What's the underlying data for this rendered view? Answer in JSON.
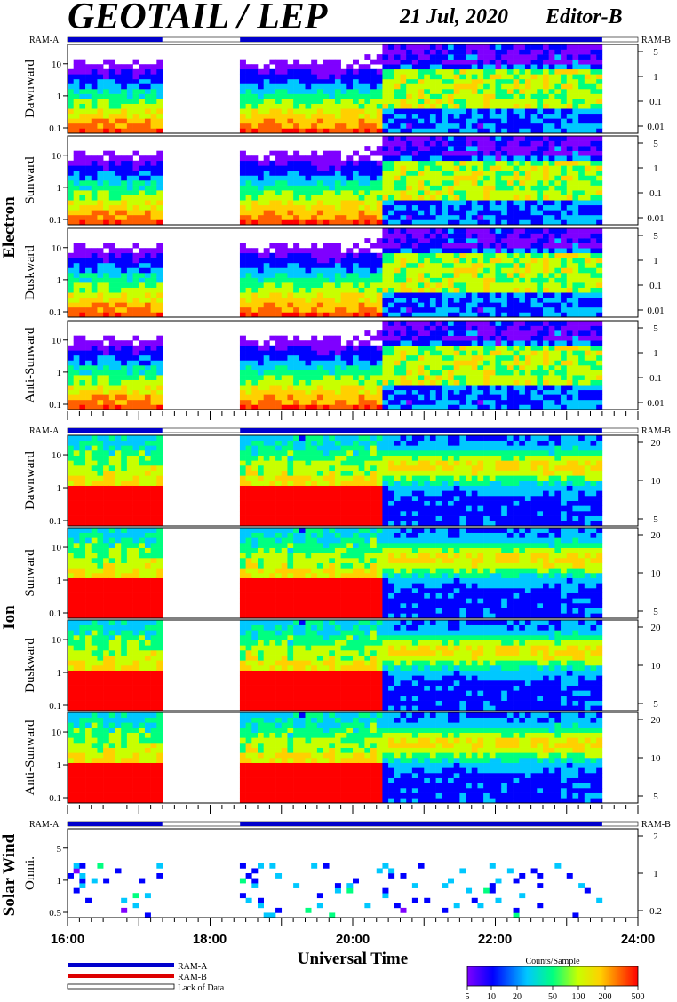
{
  "header": {
    "title": "GEOTAIL / LEP",
    "date": "21 Jul, 2020",
    "editor": "Editor-B"
  },
  "ram": {
    "a": "RAM-A",
    "b": "RAM-B"
  },
  "groups": [
    {
      "label": "Electron",
      "panels": [
        "Dawnward",
        "Sunward",
        "Duskward",
        "Anti-Sunward"
      ]
    },
    {
      "label": "Ion",
      "panels": [
        "Dawnward",
        "Sunward",
        "Duskward",
        "Anti-Sunward"
      ]
    },
    {
      "label": "Solar Wind",
      "panels": [
        "Omni."
      ]
    }
  ],
  "x_axis": {
    "label": "Universal Time",
    "ticks": [
      "16:00",
      "18:00",
      "20:00",
      "22:00",
      "24:00"
    ]
  },
  "legend": {
    "ram_a": "RAM-A",
    "ram_b": "RAM-B",
    "lack": "Lack of Data"
  },
  "colorbar": {
    "title": "Counts/Sample",
    "ticks": [
      "5",
      "10",
      "20",
      "50",
      "100",
      "200",
      "500"
    ]
  },
  "colors": {
    "ram_a": "#0000cc",
    "ram_b": "#dd0000",
    "scale": [
      "#7f00ff",
      "#0000ff",
      "#00c8ff",
      "#00ff80",
      "#c8ff00",
      "#ffd000",
      "#ff6000",
      "#ff0000"
    ]
  },
  "chart_data": {
    "type": "heatmap",
    "x_range_hours": [
      16,
      24
    ],
    "data_gaps_ut": [
      [
        "17:20",
        "18:25"
      ],
      [
        "23:30",
        "24:00"
      ]
    ],
    "electron": {
      "left_ticks": [
        "0.1",
        "1",
        "10"
      ],
      "right_ticks": [
        "5",
        "1",
        "0.1",
        "0.01"
      ]
    },
    "ion": {
      "left_ticks": [
        "0.1",
        "1",
        "10"
      ],
      "right_ticks": [
        "20",
        "10",
        "5"
      ]
    },
    "solar_wind": {
      "left_ticks": [
        "0.5",
        "1",
        "5"
      ],
      "right_ticks": [
        "2",
        "1",
        "0.2"
      ]
    },
    "colorbar_range": [
      5,
      500
    ]
  }
}
